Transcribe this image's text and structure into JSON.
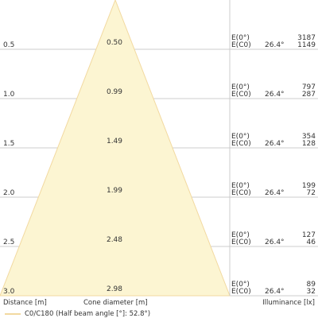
{
  "chart_data": {
    "type": "cone-diagram",
    "half_beam_angle_deg": 52.8,
    "colors": {
      "cone_fill": "#fcf5d2",
      "cone_edge": "#f2d9a0",
      "grid": "#cccccc",
      "text": "#333333"
    },
    "rows": [
      {
        "distance": "0.5",
        "diameter": "0.50",
        "label_e0": "E(0°)",
        "label_ec0": "E(C0)",
        "angle": "26.4°",
        "e0": "3187",
        "ec0": "1149"
      },
      {
        "distance": "1.0",
        "diameter": "0.99",
        "label_e0": "E(0°)",
        "label_ec0": "E(C0)",
        "angle": "26.4°",
        "e0": "797",
        "ec0": "287"
      },
      {
        "distance": "1.5",
        "diameter": "1.49",
        "label_e0": "E(0°)",
        "label_ec0": "E(C0)",
        "angle": "26.4°",
        "e0": "354",
        "ec0": "128"
      },
      {
        "distance": "2.0",
        "diameter": "1.99",
        "label_e0": "E(0°)",
        "label_ec0": "E(C0)",
        "angle": "26.4°",
        "e0": "199",
        "ec0": "72"
      },
      {
        "distance": "2.5",
        "diameter": "2.48",
        "label_e0": "E(0°)",
        "label_ec0": "E(C0)",
        "angle": "26.4°",
        "e0": "127",
        "ec0": "46"
      },
      {
        "distance": "3.0",
        "diameter": "2.98",
        "label_e0": "E(0°)",
        "label_ec0": "E(C0)",
        "angle": "26.4°",
        "e0": "89",
        "ec0": "32"
      }
    ]
  },
  "footer": {
    "distance_label": "Distance [m]",
    "diameter_label": "Cone diameter [m]",
    "illuminance_label": "Illuminance [lx]"
  },
  "legend": {
    "text": "C0/C180 (Half beam angle [°]: 52.8°)"
  }
}
